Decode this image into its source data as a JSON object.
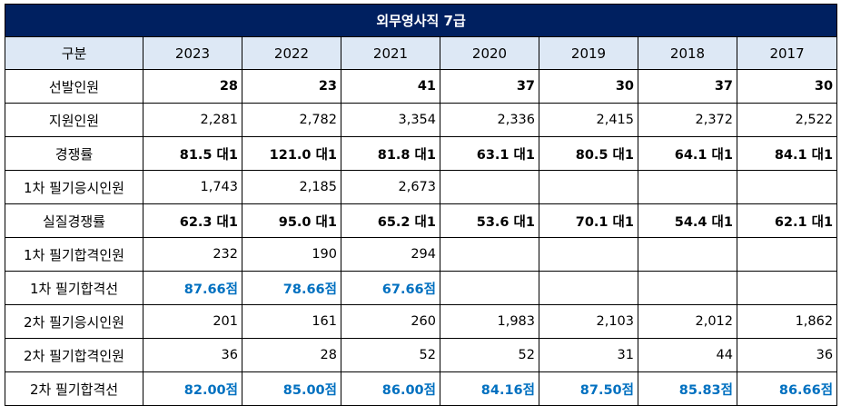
{
  "title": "외무영사직  7급",
  "header": [
    "구분",
    "2023",
    "2022",
    "2021",
    "2020",
    "2019",
    "2018",
    "2017"
  ],
  "rows": [
    {
      "label": "선발인원",
      "style": "bold",
      "values": [
        "28",
        "23",
        "41",
        "37",
        "30",
        "37",
        "30"
      ]
    },
    {
      "label": "지원인원",
      "style": "normal",
      "values": [
        "2,281",
        "2,782",
        "3,354",
        "2,336",
        "2,415",
        "2,372",
        "2,522"
      ]
    },
    {
      "label": "경쟁률",
      "style": "bold",
      "values": [
        "81.5 대1",
        "121.0 대1",
        "81.8 대1",
        "63.1 대1",
        "80.5 대1",
        "64.1 대1",
        "84.1 대1"
      ]
    },
    {
      "label": "1차 필기응시인원",
      "style": "normal",
      "values": [
        "1,743",
        "2,185",
        "2,673",
        "",
        "",
        "",
        ""
      ]
    },
    {
      "label": "실질경쟁률",
      "style": "bold",
      "values": [
        "62.3 대1",
        "95.0 대1",
        "65.2 대1",
        "53.6 대1",
        "70.1 대1",
        "54.4 대1",
        "62.1 대1"
      ]
    },
    {
      "label": "1차 필기합격인원",
      "style": "normal",
      "values": [
        "232",
        "190",
        "294",
        "",
        "",
        "",
        ""
      ]
    },
    {
      "label": "1차 필기합격선",
      "style": "blue",
      "values": [
        "87.66점",
        "78.66점",
        "67.66점",
        "",
        "",
        "",
        ""
      ]
    },
    {
      "label": "2차 필기응시인원",
      "style": "normal",
      "values": [
        "201",
        "161",
        "260",
        "1,983",
        "2,103",
        "2,012",
        "1,862"
      ]
    },
    {
      "label": "2차 필기합격인원",
      "style": "normal",
      "values": [
        "36",
        "28",
        "52",
        "52",
        "31",
        "44",
        "36"
      ]
    },
    {
      "label": "2차 필기합격선",
      "style": "blue",
      "values": [
        "82.00점",
        "85.00점",
        "86.00점",
        "84.16점",
        "87.50점",
        "85.83점",
        "86.66점"
      ]
    }
  ],
  "colors": {
    "title_bg": "#002060",
    "header_bg": "#dde8f5",
    "cutoff_text": "#0070c0"
  }
}
